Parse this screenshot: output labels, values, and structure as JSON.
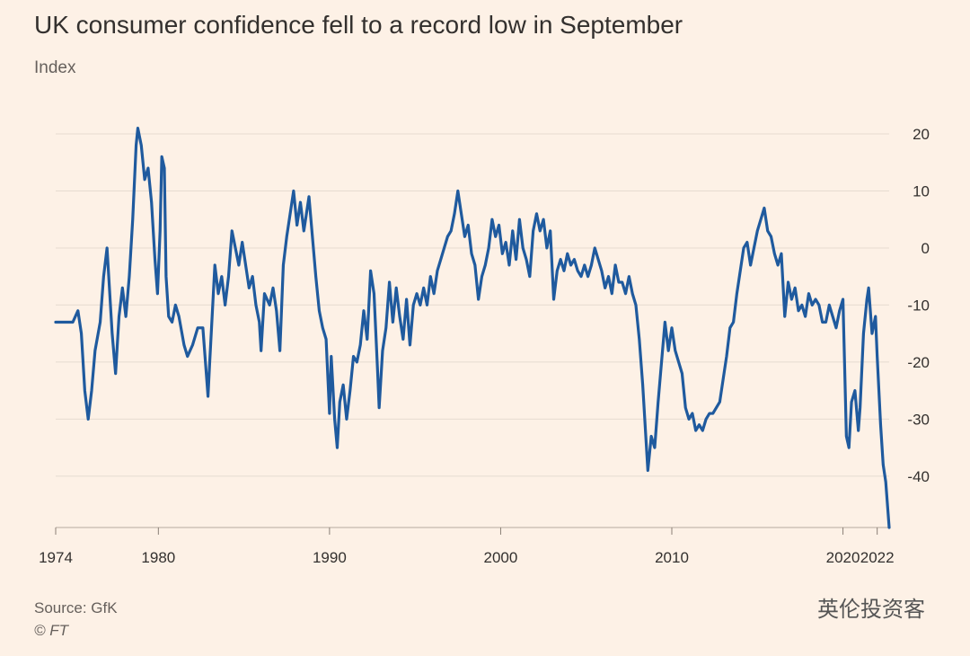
{
  "chart_data": {
    "type": "line",
    "title": "UK consumer confidence fell to a record low in September",
    "subtitle": "Index",
    "source": "Source: GfK",
    "credit": "© FT",
    "watermark": "英伦投资客",
    "color": "#1f5a9e",
    "grid": true,
    "xlim": [
      1974,
      2022.7
    ],
    "xticks": [
      1974,
      1980,
      1990,
      2000,
      2010,
      2020,
      2022
    ],
    "ylim": [
      -49,
      22
    ],
    "yticks": [
      20,
      10,
      0,
      -10,
      -20,
      -30,
      -40
    ],
    "x": [
      1974.0,
      1975.0,
      1975.3,
      1975.5,
      1975.7,
      1975.9,
      1976.1,
      1976.3,
      1976.6,
      1976.8,
      1977.0,
      1977.1,
      1977.3,
      1977.5,
      1977.7,
      1977.9,
      1978.1,
      1978.3,
      1978.5,
      1978.7,
      1978.8,
      1979.0,
      1979.2,
      1979.4,
      1979.6,
      1979.8,
      1979.95,
      1980.1,
      1980.2,
      1980.35,
      1980.45,
      1980.6,
      1980.8,
      1981.0,
      1981.2,
      1981.5,
      1981.7,
      1982.0,
      1982.3,
      1982.6,
      1982.8,
      1982.9,
      1983.0,
      1983.3,
      1983.5,
      1983.7,
      1983.9,
      1984.1,
      1984.3,
      1984.5,
      1984.7,
      1984.9,
      1985.1,
      1985.3,
      1985.5,
      1985.7,
      1985.9,
      1986.0,
      1986.2,
      1986.5,
      1986.7,
      1986.9,
      1987.1,
      1987.3,
      1987.5,
      1987.7,
      1987.9,
      1988.1,
      1988.3,
      1988.5,
      1988.8,
      1989.0,
      1989.2,
      1989.4,
      1989.6,
      1989.8,
      1990.0,
      1990.1,
      1990.3,
      1990.45,
      1990.6,
      1990.8,
      1991.0,
      1991.2,
      1991.4,
      1991.6,
      1991.8,
      1992.0,
      1992.2,
      1992.4,
      1992.6,
      1992.8,
      1992.9,
      1993.1,
      1993.3,
      1993.5,
      1993.7,
      1993.9,
      1994.1,
      1994.3,
      1994.5,
      1994.7,
      1994.9,
      1995.1,
      1995.3,
      1995.5,
      1995.7,
      1995.9,
      1996.1,
      1996.3,
      1996.5,
      1996.7,
      1996.9,
      1997.1,
      1997.3,
      1997.5,
      1997.7,
      1997.9,
      1998.1,
      1998.3,
      1998.5,
      1998.7,
      1998.9,
      1999.1,
      1999.3,
      1999.5,
      1999.7,
      1999.9,
      2000.1,
      2000.3,
      2000.5,
      2000.7,
      2000.9,
      2001.1,
      2001.3,
      2001.5,
      2001.7,
      2001.9,
      2002.1,
      2002.3,
      2002.5,
      2002.7,
      2002.9,
      2003.1,
      2003.3,
      2003.5,
      2003.7,
      2003.9,
      2004.1,
      2004.3,
      2004.5,
      2004.7,
      2004.9,
      2005.1,
      2005.3,
      2005.5,
      2005.7,
      2005.9,
      2006.1,
      2006.3,
      2006.5,
      2006.7,
      2006.9,
      2007.1,
      2007.3,
      2007.5,
      2007.7,
      2007.9,
      2008.1,
      2008.3,
      2008.5,
      2008.6,
      2008.8,
      2009.0,
      2009.2,
      2009.4,
      2009.6,
      2009.8,
      2010.0,
      2010.2,
      2010.4,
      2010.6,
      2010.8,
      2011.0,
      2011.2,
      2011.4,
      2011.6,
      2011.8,
      2012.0,
      2012.2,
      2012.4,
      2012.6,
      2012.8,
      2013.0,
      2013.2,
      2013.4,
      2013.6,
      2013.8,
      2014.0,
      2014.2,
      2014.4,
      2014.6,
      2014.8,
      2015.0,
      2015.2,
      2015.4,
      2015.6,
      2015.8,
      2016.0,
      2016.2,
      2016.4,
      2016.6,
      2016.8,
      2017.0,
      2017.2,
      2017.4,
      2017.6,
      2017.8,
      2018.0,
      2018.2,
      2018.4,
      2018.6,
      2018.8,
      2019.0,
      2019.2,
      2019.4,
      2019.6,
      2019.8,
      2020.0,
      2020.2,
      2020.35,
      2020.5,
      2020.7,
      2020.9,
      2021.0,
      2021.2,
      2021.4,
      2021.5,
      2021.7,
      2021.9,
      2022.0,
      2022.2,
      2022.35,
      2022.5,
      2022.7
    ],
    "values": [
      -13,
      -13,
      -11,
      -15,
      -25,
      -30,
      -25,
      -18,
      -13,
      -5,
      0,
      -5,
      -15,
      -22,
      -12,
      -7,
      -12,
      -5,
      5,
      18,
      21,
      18,
      12,
      14,
      8,
      -2,
      -8,
      3,
      16,
      14,
      -5,
      -12,
      -13,
      -10,
      -12,
      -17,
      -19,
      -17,
      -14,
      -14,
      -22,
      -26,
      -20,
      -3,
      -8,
      -5,
      -10,
      -5,
      3,
      0,
      -3,
      1,
      -3,
      -7,
      -5,
      -10,
      -13,
      -18,
      -8,
      -10,
      -7,
      -11,
      -18,
      -3,
      2,
      6,
      10,
      4,
      8,
      3,
      9,
      2,
      -5,
      -11,
      -14,
      -16,
      -29,
      -19,
      -30,
      -35,
      -27,
      -24,
      -30,
      -25,
      -19,
      -20,
      -17,
      -11,
      -16,
      -4,
      -8,
      -21,
      -28,
      -18,
      -14,
      -6,
      -13,
      -7,
      -12,
      -16,
      -9,
      -17,
      -10,
      -8,
      -10,
      -7,
      -10,
      -5,
      -8,
      -4,
      -2,
      0,
      2,
      3,
      6,
      10,
      6,
      2,
      4,
      -1,
      -3,
      -9,
      -5,
      -3,
      0,
      5,
      2,
      4,
      -1,
      1,
      -3,
      3,
      -2,
      5,
      0,
      -2,
      -5,
      3,
      6,
      3,
      5,
      0,
      3,
      -9,
      -4,
      -2,
      -4,
      -1,
      -3,
      -2,
      -4,
      -5,
      -3,
      -5,
      -3,
      0,
      -2,
      -4,
      -7,
      -5,
      -8,
      -3,
      -6,
      -6,
      -8,
      -5,
      -8,
      -10,
      -16,
      -24,
      -34,
      -39,
      -33,
      -35,
      -27,
      -20,
      -13,
      -18,
      -14,
      -18,
      -20,
      -22,
      -28,
      -30,
      -29,
      -32,
      -31,
      -32,
      -30,
      -29,
      -29,
      -28,
      -27,
      -23,
      -19,
      -14,
      -13,
      -8,
      -4,
      0,
      1,
      -3,
      0,
      3,
      5,
      7,
      3,
      2,
      -1,
      -3,
      -1,
      -12,
      -6,
      -9,
      -7,
      -11,
      -10,
      -12,
      -8,
      -10,
      -9,
      -10,
      -13,
      -13,
      -10,
      -12,
      -14,
      -11,
      -9,
      -33,
      -35,
      -27,
      -25,
      -32,
      -28,
      -15,
      -9,
      -7,
      -15,
      -12,
      -19,
      -31,
      -38,
      -41,
      -49
    ]
  }
}
